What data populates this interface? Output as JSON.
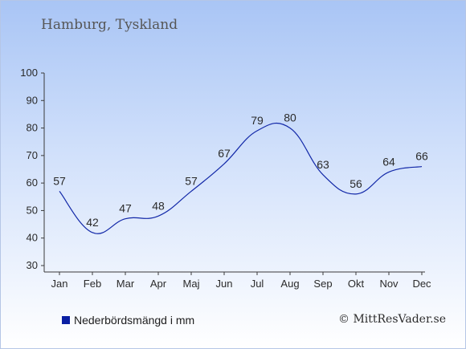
{
  "title": "Hamburg, Tyskland",
  "legend_label": "Nederbördsmängd i mm",
  "credit": "© MittResVader.se",
  "colors": {
    "line": "#1228a8",
    "legend_swatch": "#0a1fa3",
    "axis": "#3a3a3a"
  },
  "chart_data": {
    "type": "line",
    "categories": [
      "Jan",
      "Feb",
      "Mar",
      "Apr",
      "Maj",
      "Jun",
      "Jul",
      "Aug",
      "Sep",
      "Okt",
      "Nov",
      "Dec"
    ],
    "series": [
      {
        "name": "Nederbördsmängd i mm",
        "values": [
          57,
          42,
          47,
          48,
          57,
          67,
          79,
          80,
          63,
          56,
          64,
          66
        ]
      }
    ],
    "ylim": [
      30,
      100
    ],
    "yticks": [
      30,
      40,
      50,
      60,
      70,
      80,
      90,
      100
    ],
    "grid": false,
    "legend": "bottom-left"
  }
}
